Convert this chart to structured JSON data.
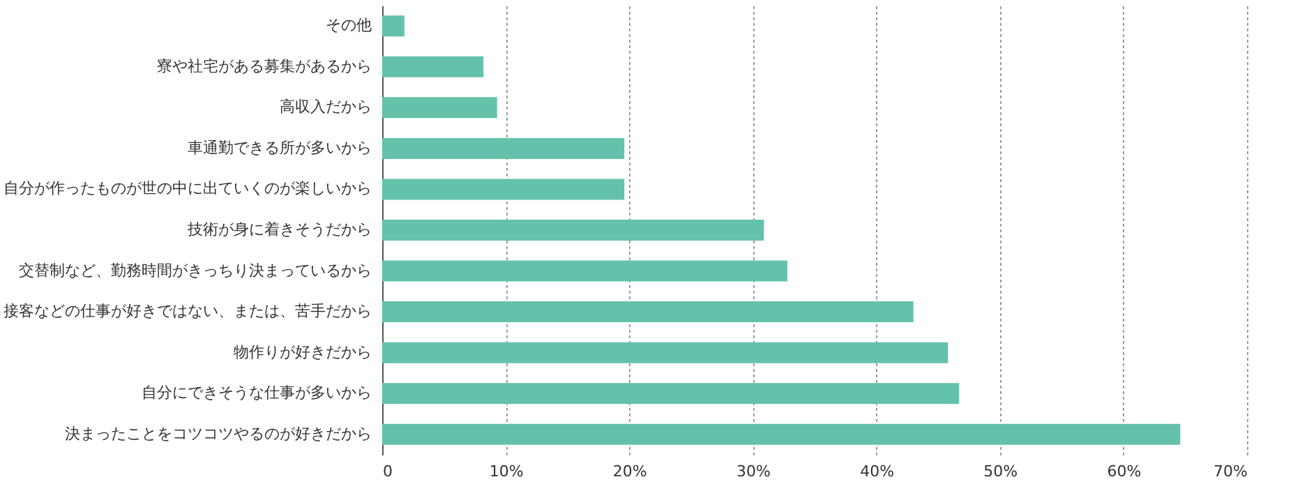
{
  "chart_data": {
    "type": "bar",
    "orientation": "horizontal",
    "categories": [
      "その他",
      "寮や社宅がある募集があるから",
      "高収入だから",
      "車通勤できる所が多いから",
      "自分が作ったものが世の中に出ていくのが楽しいから",
      "技術が身に着きそうだから",
      "交替制など、勤務時間がきっちり決まっているから",
      "接客などの仕事が好きではない、または、苦手だから",
      "物作りが好きだから",
      "自分にできそうな仕事が多いから",
      "決まったことをコツコツやるのが好きだから"
    ],
    "values": [
      1.8,
      8.2,
      9.3,
      19.6,
      19.6,
      30.9,
      32.8,
      43.0,
      45.8,
      46.7,
      64.6
    ],
    "color": "#64c2aa",
    "xlim": [
      0,
      70
    ],
    "xticks": [
      0,
      {
        "value": 10,
        "label": "10%"
      },
      {
        "value": 20,
        "label": "20%"
      },
      {
        "value": 30,
        "label": "30%"
      },
      {
        "value": 40,
        "label": "40%"
      },
      {
        "value": 50,
        "label": "50%"
      },
      {
        "value": 60,
        "label": "60%"
      },
      {
        "value": 70,
        "label": "70%"
      }
    ],
    "grid": "x"
  }
}
